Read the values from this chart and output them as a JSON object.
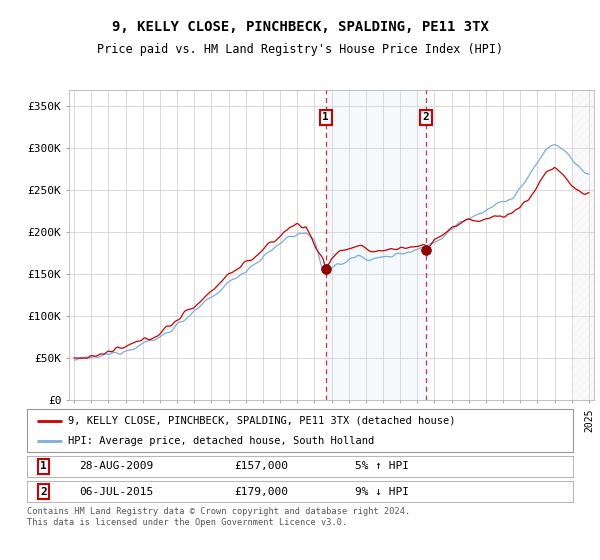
{
  "title": "9, KELLY CLOSE, PINCHBECK, SPALDING, PE11 3TX",
  "subtitle": "Price paid vs. HM Land Registry's House Price Index (HPI)",
  "background_color": "#ffffff",
  "plot_bg_color": "#ffffff",
  "grid_color": "#cccccc",
  "red_line_color": "#cc0000",
  "blue_line_color": "#7aade0",
  "transaction1": {
    "date": "2009-08-28",
    "price": 157000,
    "label": "1",
    "year": 2009.66
  },
  "transaction2": {
    "date": "2015-07-06",
    "price": 179000,
    "label": "2",
    "year": 2015.51
  },
  "legend_line1": "9, KELLY CLOSE, PINCHBECK, SPALDING, PE11 3TX (detached house)",
  "legend_line2": "HPI: Average price, detached house, South Holland",
  "footer": "Contains HM Land Registry data © Crown copyright and database right 2024.\nThis data is licensed under the Open Government Licence v3.0.",
  "ylim": [
    0,
    370000
  ],
  "yticks": [
    0,
    50000,
    100000,
    150000,
    200000,
    250000,
    300000,
    350000
  ],
  "ylabels": [
    "£0",
    "£50K",
    "£100K",
    "£150K",
    "£200K",
    "£250K",
    "£300K",
    "£350K"
  ],
  "xmin": 1994.7,
  "xmax": 2025.3,
  "hatch_start": 2024.0,
  "shade_alpha": 0.18,
  "shade_color": "#cce0f0"
}
